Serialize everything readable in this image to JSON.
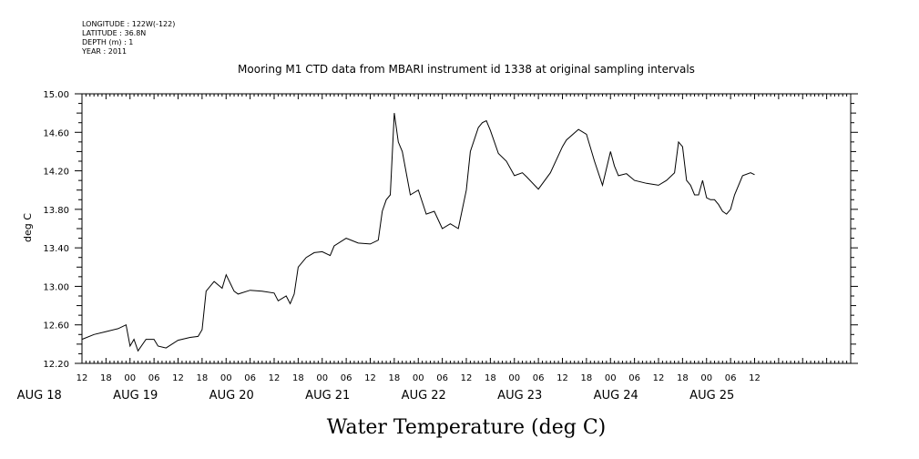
{
  "header": {
    "longitude": "LONGITUDE : 122W(-122)",
    "latitude": "LATITUDE : 36.8N",
    "depth": "DEPTH (m) : 1",
    "year": "YEAR : 2011"
  },
  "chart_data": {
    "type": "line",
    "title": "Mooring M1 CTD data from MBARI instrument id 1338 at original sampling intervals",
    "xlabel": "Water Temperature (deg C)",
    "ylabel": "deg C",
    "ylim": [
      12.2,
      15.0
    ],
    "xlim_hours": [
      12,
      204
    ],
    "y_ticks": [
      "12.20",
      "12.60",
      "13.00",
      "13.40",
      "13.80",
      "14.20",
      "14.60",
      "15.00"
    ],
    "x_hour_ticks": [
      "12",
      "18",
      "00",
      "06",
      "12",
      "18",
      "00",
      "06",
      "12",
      "18",
      "00",
      "06",
      "12",
      "18",
      "00",
      "06",
      "12",
      "18",
      "00",
      "06",
      "12",
      "18",
      "00",
      "06",
      "12",
      "18",
      "00",
      "06",
      "12"
    ],
    "date_labels": [
      "AUG 18",
      "AUG 19",
      "AUG 20",
      "AUG 21",
      "AUG 22",
      "AUG 23",
      "AUG 24",
      "AUG 25"
    ],
    "series": [
      {
        "x": [
          "2011-08-18T12:00",
          "2011-08-18T15:00",
          "2011-08-18T18:00",
          "2011-08-18T21:00",
          "2011-08-18T23:00",
          "2011-08-19T00:00",
          "2011-08-19T01:00",
          "2011-08-19T02:00",
          "2011-08-19T04:00",
          "2011-08-19T06:00",
          "2011-08-19T07:00",
          "2011-08-19T09:00",
          "2011-08-19T12:00",
          "2011-08-19T15:00",
          "2011-08-19T17:00",
          "2011-08-19T18:00",
          "2011-08-19T19:00",
          "2011-08-19T21:00",
          "2011-08-19T23:00",
          "2011-08-20T00:00",
          "2011-08-20T02:00",
          "2011-08-20T03:00",
          "2011-08-20T06:00",
          "2011-08-20T09:00",
          "2011-08-20T12:00",
          "2011-08-20T13:00",
          "2011-08-20T15:00",
          "2011-08-20T16:00",
          "2011-08-20T17:00",
          "2011-08-20T18:00",
          "2011-08-20T20:00",
          "2011-08-20T22:00",
          "2011-08-21T00:00",
          "2011-08-21T02:00",
          "2011-08-21T03:00",
          "2011-08-21T06:00",
          "2011-08-21T09:00",
          "2011-08-21T12:00",
          "2011-08-21T14:00",
          "2011-08-21T15:00",
          "2011-08-21T16:00",
          "2011-08-21T17:00",
          "2011-08-21T18:00",
          "2011-08-21T19:00",
          "2011-08-21T20:00",
          "2011-08-21T22:00",
          "2011-08-22T00:00",
          "2011-08-22T02:00",
          "2011-08-22T04:00",
          "2011-08-22T06:00",
          "2011-08-22T08:00",
          "2011-08-22T10:00",
          "2011-08-22T12:00",
          "2011-08-22T13:00",
          "2011-08-22T15:00",
          "2011-08-22T16:00",
          "2011-08-22T17:00",
          "2011-08-22T18:00",
          "2011-08-22T20:00",
          "2011-08-22T22:00",
          "2011-08-23T00:00",
          "2011-08-23T02:00",
          "2011-08-23T03:00",
          "2011-08-23T06:00",
          "2011-08-23T09:00",
          "2011-08-23T12:00",
          "2011-08-23T13:00",
          "2011-08-23T16:00",
          "2011-08-23T18:00",
          "2011-08-23T20:00",
          "2011-08-23T22:00",
          "2011-08-24T00:00",
          "2011-08-24T01:00",
          "2011-08-24T02:00",
          "2011-08-24T04:00",
          "2011-08-24T06:00",
          "2011-08-24T09:00",
          "2011-08-24T12:00",
          "2011-08-24T14:00",
          "2011-08-24T16:00",
          "2011-08-24T17:00",
          "2011-08-24T18:00",
          "2011-08-24T19:00",
          "2011-08-24T20:00",
          "2011-08-24T21:00",
          "2011-08-24T22:00",
          "2011-08-24T23:00",
          "2011-08-25T00:00",
          "2011-08-25T01:00",
          "2011-08-25T02:00",
          "2011-08-25T03:00",
          "2011-08-25T04:00",
          "2011-08-25T05:00",
          "2011-08-25T06:00",
          "2011-08-25T07:00",
          "2011-08-25T09:00",
          "2011-08-25T11:00",
          "2011-08-25T12:00"
        ],
        "values": [
          12.45,
          12.5,
          12.53,
          12.56,
          12.6,
          12.38,
          12.45,
          12.33,
          12.45,
          12.45,
          12.38,
          12.36,
          12.44,
          12.47,
          12.48,
          12.55,
          12.95,
          13.05,
          12.98,
          13.12,
          12.95,
          12.92,
          12.96,
          12.95,
          12.93,
          12.85,
          12.9,
          12.82,
          12.92,
          13.2,
          13.3,
          13.35,
          13.36,
          13.32,
          13.42,
          13.5,
          13.45,
          13.44,
          13.48,
          13.78,
          13.9,
          13.95,
          14.8,
          14.5,
          14.4,
          13.95,
          14.0,
          13.75,
          13.78,
          13.6,
          13.65,
          13.6,
          14.0,
          14.4,
          14.65,
          14.7,
          14.72,
          14.62,
          14.38,
          14.3,
          14.15,
          14.18,
          14.14,
          14.01,
          14.18,
          14.45,
          14.52,
          14.63,
          14.58,
          14.3,
          14.05,
          14.4,
          14.25,
          14.15,
          14.17,
          14.1,
          14.07,
          14.05,
          14.1,
          14.18,
          14.5,
          14.45,
          14.1,
          14.05,
          13.95,
          13.95,
          14.1,
          13.92,
          13.9,
          13.9,
          13.85,
          13.78,
          13.75,
          13.8,
          13.95,
          14.15,
          14.18,
          14.16
        ]
      }
    ]
  }
}
